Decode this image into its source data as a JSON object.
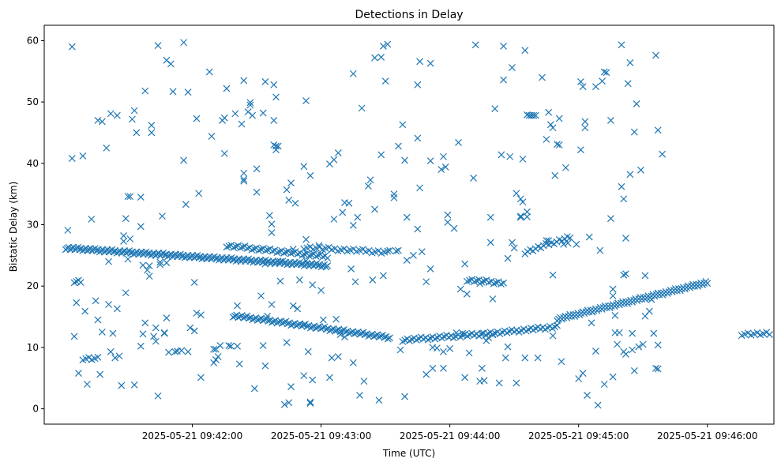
{
  "chart_data": {
    "type": "scatter",
    "title": "Detections in Delay",
    "xlabel": "Time (UTC)",
    "ylabel": "Bistatic Delay (km)",
    "marker": "x",
    "color": "#1f77b4",
    "grid": false,
    "legend": false,
    "xlim_seconds_past_0941": [
      -9,
      331
    ],
    "ylim": [
      -2.5,
      62.5
    ],
    "x_ticks": [
      {
        "t": 60,
        "label": "2025-05-21 09:42:00"
      },
      {
        "t": 120,
        "label": "2025-05-21 09:43:00"
      },
      {
        "t": 180,
        "label": "2025-05-21 09:44:00"
      },
      {
        "t": 240,
        "label": "2025-05-21 09:45:00"
      },
      {
        "t": 300,
        "label": "2025-05-21 09:46:00"
      }
    ],
    "y_ticks": [
      0,
      10,
      20,
      30,
      40,
      50,
      60
    ],
    "tracks": [
      {
        "t0": 1,
        "t1": 123,
        "y0": 26.2,
        "y1": 23.3,
        "n": 170
      },
      {
        "t0": 76,
        "t1": 123,
        "y0": 26.6,
        "y1": 24.8,
        "n": 45
      },
      {
        "t0": 112,
        "t1": 151,
        "y0": 26.3,
        "y1": 25.5,
        "n": 28
      },
      {
        "t0": 79,
        "t1": 152,
        "y0": 15.2,
        "y1": 11.6,
        "n": 90
      },
      {
        "t0": 158,
        "t1": 200,
        "y0": 11.2,
        "y1": 12.3,
        "n": 40
      },
      {
        "t0": 200,
        "t1": 230,
        "y0": 12.3,
        "y1": 13.4,
        "n": 28
      },
      {
        "t0": 230,
        "t1": 300,
        "y0": 14.6,
        "y1": 20.6,
        "n": 95
      },
      {
        "t0": 215,
        "t1": 236,
        "y0": 25.5,
        "y1": 28.0,
        "n": 18
      },
      {
        "t0": 188,
        "t1": 205,
        "y0": 21.0,
        "y1": 20.5,
        "n": 16
      },
      {
        "t0": 316,
        "t1": 329,
        "y0": 12.2,
        "y1": 12.2,
        "n": 10
      },
      {
        "t0": 5,
        "t1": 8,
        "y0": 20.8,
        "y1": 20.8,
        "n": 4
      },
      {
        "t0": 9,
        "t1": 16,
        "y0": 8.2,
        "y1": 8.2,
        "n": 6
      }
    ],
    "points": [
      [
        2,
        29.1
      ],
      [
        4,
        59.0
      ],
      [
        4,
        40.8
      ],
      [
        5,
        11.8
      ],
      [
        6,
        17.3
      ],
      [
        7,
        5.8
      ],
      [
        9,
        41.2
      ],
      [
        10,
        15.9
      ],
      [
        11,
        4.0
      ],
      [
        13,
        30.9
      ],
      [
        15,
        17.6
      ],
      [
        16,
        14.5
      ],
      [
        16,
        47.0
      ],
      [
        17,
        5.6
      ],
      [
        18,
        12.5
      ],
      [
        18,
        46.8
      ],
      [
        20,
        42.5
      ],
      [
        21,
        17.0
      ],
      [
        21,
        24.0
      ],
      [
        22,
        48.1
      ],
      [
        22,
        9.3
      ],
      [
        23,
        12.3
      ],
      [
        24,
        8.3
      ],
      [
        25,
        16.3
      ],
      [
        25,
        47.8
      ],
      [
        26,
        8.6
      ],
      [
        27,
        3.8
      ],
      [
        28,
        27.3
      ],
      [
        28,
        28.2
      ],
      [
        29,
        18.9
      ],
      [
        29,
        31.0
      ],
      [
        30,
        34.6
      ],
      [
        30,
        24.4
      ],
      [
        31,
        34.6
      ],
      [
        31,
        27.7
      ],
      [
        32,
        47.2
      ],
      [
        33,
        48.6
      ],
      [
        33,
        3.9
      ],
      [
        34,
        45.0
      ],
      [
        36,
        34.5
      ],
      [
        36,
        29.7
      ],
      [
        36,
        10.2
      ],
      [
        37,
        23.4
      ],
      [
        37,
        12.2
      ],
      [
        38,
        51.8
      ],
      [
        38,
        14.0
      ],
      [
        39,
        22.6
      ],
      [
        40,
        21.6
      ],
      [
        40,
        23.3
      ],
      [
        41,
        46.2
      ],
      [
        41,
        45.0
      ],
      [
        42,
        11.8
      ],
      [
        43,
        11.0
      ],
      [
        43,
        13.2
      ],
      [
        44,
        2.1
      ],
      [
        44,
        59.2
      ],
      [
        45,
        23.5
      ],
      [
        45,
        23.9
      ],
      [
        46,
        31.4
      ],
      [
        47,
        12.3
      ],
      [
        47,
        12.4
      ],
      [
        48,
        23.8
      ],
      [
        48,
        14.8
      ],
      [
        48,
        56.8
      ],
      [
        49,
        9.2
      ],
      [
        50,
        56.2
      ],
      [
        51,
        51.7
      ],
      [
        52,
        9.3
      ],
      [
        53,
        9.4
      ],
      [
        55,
        9.5
      ],
      [
        56,
        40.5
      ],
      [
        56,
        59.7
      ],
      [
        57,
        33.3
      ],
      [
        58,
        51.6
      ],
      [
        58,
        9.3
      ],
      [
        59,
        13.2
      ],
      [
        61,
        12.7
      ],
      [
        61,
        20.6
      ],
      [
        62,
        47.3
      ],
      [
        62,
        15.6
      ],
      [
        63,
        35.1
      ],
      [
        64,
        15.3
      ],
      [
        64,
        5.1
      ],
      [
        68,
        54.9
      ],
      [
        69,
        44.4
      ],
      [
        70,
        9.7
      ],
      [
        70,
        7.5
      ],
      [
        71,
        8.0
      ],
      [
        71,
        9.7
      ],
      [
        72,
        8.5
      ],
      [
        73,
        10.3
      ],
      [
        74,
        47.0
      ],
      [
        75,
        47.4
      ],
      [
        75,
        41.6
      ],
      [
        76,
        52.2
      ],
      [
        77,
        10.3
      ],
      [
        78,
        10.2
      ],
      [
        80,
        48.1
      ],
      [
        81,
        16.8
      ],
      [
        81,
        10.2
      ],
      [
        82,
        7.3
      ],
      [
        83,
        46.4
      ],
      [
        84,
        37.4
      ],
      [
        84,
        37.1
      ],
      [
        84,
        53.5
      ],
      [
        84,
        38.4
      ],
      [
        86,
        48.4
      ],
      [
        87,
        49.5
      ],
      [
        87,
        49.9
      ],
      [
        88,
        47.8
      ],
      [
        89,
        3.3
      ],
      [
        90,
        39.1
      ],
      [
        90,
        35.3
      ],
      [
        92,
        18.4
      ],
      [
        93,
        48.2
      ],
      [
        93,
        10.3
      ],
      [
        94,
        53.3
      ],
      [
        94,
        7.0
      ],
      [
        94,
        23.6
      ],
      [
        95,
        15.1
      ],
      [
        96,
        31.5
      ],
      [
        97,
        17.0
      ],
      [
        97,
        30.1
      ],
      [
        97,
        28.7
      ],
      [
        98,
        52.8
      ],
      [
        98,
        47.0
      ],
      [
        98,
        43.0
      ],
      [
        99,
        50.8
      ],
      [
        99,
        42.8
      ],
      [
        99,
        42.2
      ],
      [
        100,
        42.8
      ],
      [
        101,
        20.8
      ],
      [
        101,
        24.0
      ],
      [
        103,
        0.7
      ],
      [
        104,
        35.7
      ],
      [
        104,
        10.8
      ],
      [
        105,
        34.0
      ],
      [
        105,
        1.0
      ],
      [
        106,
        3.6
      ],
      [
        106,
        36.8
      ],
      [
        107,
        26.0
      ],
      [
        107,
        16.8
      ],
      [
        108,
        33.5
      ],
      [
        109,
        16.3
      ],
      [
        110,
        21.0
      ],
      [
        112,
        13.7
      ],
      [
        112,
        39.5
      ],
      [
        112,
        5.4
      ],
      [
        113,
        27.6
      ],
      [
        113,
        50.2
      ],
      [
        113,
        24.1
      ],
      [
        114,
        9.3
      ],
      [
        115,
        38.0
      ],
      [
        115,
        0.9
      ],
      [
        115,
        1.1
      ],
      [
        116,
        20.2
      ],
      [
        116,
        4.7
      ],
      [
        119,
        26.6
      ],
      [
        120,
        19.3
      ],
      [
        121,
        14.5
      ],
      [
        124,
        39.9
      ],
      [
        124,
        5.1
      ],
      [
        125,
        8.3
      ],
      [
        126,
        30.9
      ],
      [
        126,
        40.6
      ],
      [
        127,
        14.6
      ],
      [
        128,
        41.7
      ],
      [
        128,
        8.5
      ],
      [
        129,
        12.1
      ],
      [
        130,
        32.0
      ],
      [
        131,
        33.6
      ],
      [
        131,
        11.7
      ],
      [
        133,
        33.5
      ],
      [
        134,
        22.8
      ],
      [
        135,
        29.9
      ],
      [
        135,
        54.6
      ],
      [
        135,
        7.5
      ],
      [
        136,
        20.7
      ],
      [
        137,
        31.2
      ],
      [
        138,
        2.2
      ],
      [
        139,
        49.0
      ],
      [
        140,
        4.5
      ],
      [
        142,
        36.3
      ],
      [
        143,
        37.3
      ],
      [
        144,
        21.0
      ],
      [
        145,
        57.2
      ],
      [
        145,
        32.5
      ],
      [
        147,
        1.4
      ],
      [
        148,
        57.3
      ],
      [
        148,
        41.4
      ],
      [
        149,
        59.1
      ],
      [
        149,
        21.7
      ],
      [
        150,
        53.4
      ],
      [
        151,
        59.4
      ],
      [
        152,
        25.8
      ],
      [
        154,
        34.4
      ],
      [
        154,
        35.0
      ],
      [
        155,
        25.7
      ],
      [
        156,
        42.8
      ],
      [
        156,
        25.8
      ],
      [
        157,
        9.6
      ],
      [
        158,
        46.3
      ],
      [
        159,
        40.5
      ],
      [
        159,
        2.0
      ],
      [
        160,
        31.2
      ],
      [
        160,
        24.2
      ],
      [
        163,
        25.0
      ],
      [
        165,
        52.8
      ],
      [
        165,
        44.1
      ],
      [
        165,
        29.3
      ],
      [
        166,
        56.6
      ],
      [
        166,
        36.0
      ],
      [
        167,
        25.6
      ],
      [
        169,
        5.6
      ],
      [
        169,
        20.7
      ],
      [
        171,
        56.3
      ],
      [
        171,
        40.4
      ],
      [
        171,
        22.8
      ],
      [
        172,
        6.6
      ],
      [
        172,
        10.0
      ],
      [
        174,
        9.9
      ],
      [
        176,
        39.0
      ],
      [
        177,
        9.3
      ],
      [
        177,
        6.6
      ],
      [
        177,
        41.1
      ],
      [
        178,
        39.4
      ],
      [
        179,
        31.6
      ],
      [
        179,
        30.4
      ],
      [
        180,
        9.8
      ],
      [
        182,
        29.4
      ],
      [
        183,
        12.4
      ],
      [
        184,
        43.4
      ],
      [
        185,
        19.5
      ],
      [
        186,
        12.3
      ],
      [
        187,
        5.1
      ],
      [
        187,
        23.6
      ],
      [
        188,
        18.7
      ],
      [
        189,
        9.1
      ],
      [
        191,
        37.6
      ],
      [
        192,
        59.3
      ],
      [
        194,
        4.5
      ],
      [
        194,
        20.4
      ],
      [
        195,
        6.6
      ],
      [
        195,
        12.3
      ],
      [
        196,
        4.6
      ],
      [
        197,
        11.1
      ],
      [
        198,
        11.6
      ],
      [
        199,
        27.1
      ],
      [
        199,
        31.2
      ],
      [
        200,
        17.9
      ],
      [
        201,
        48.9
      ],
      [
        203,
        4.2
      ],
      [
        204,
        41.4
      ],
      [
        205,
        53.6
      ],
      [
        205,
        59.1
      ],
      [
        206,
        8.3
      ],
      [
        207,
        24.5
      ],
      [
        207,
        10.1
      ],
      [
        208,
        41.1
      ],
      [
        209,
        55.6
      ],
      [
        209,
        27.1
      ],
      [
        210,
        26.2
      ],
      [
        211,
        4.2
      ],
      [
        211,
        35.1
      ],
      [
        213,
        31.4
      ],
      [
        213,
        34.2
      ],
      [
        213,
        31.2
      ],
      [
        214,
        33.7
      ],
      [
        214,
        40.7
      ],
      [
        215,
        8.3
      ],
      [
        215,
        58.4
      ],
      [
        216,
        31.3
      ],
      [
        216,
        32.1
      ],
      [
        216,
        47.9
      ],
      [
        217,
        47.8
      ],
      [
        218,
        47.8
      ],
      [
        219,
        47.8
      ],
      [
        220,
        47.8
      ],
      [
        221,
        8.3
      ],
      [
        223,
        54.0
      ],
      [
        225,
        27.4
      ],
      [
        225,
        43.9
      ],
      [
        226,
        27.4
      ],
      [
        226,
        48.3
      ],
      [
        227,
        46.3
      ],
      [
        228,
        45.8
      ],
      [
        228,
        21.8
      ],
      [
        228,
        11.9
      ],
      [
        229,
        38.0
      ],
      [
        230,
        43.1
      ],
      [
        231,
        43.0
      ],
      [
        231,
        47.3
      ],
      [
        232,
        7.7
      ],
      [
        233,
        26.8
      ],
      [
        234,
        39.3
      ],
      [
        235,
        27.0
      ],
      [
        239,
        26.8
      ],
      [
        240,
        4.9
      ],
      [
        241,
        42.2
      ],
      [
        241,
        53.3
      ],
      [
        242,
        52.5
      ],
      [
        242,
        5.8
      ],
      [
        243,
        46.8
      ],
      [
        243,
        45.8
      ],
      [
        244,
        2.2
      ],
      [
        245,
        28.0
      ],
      [
        246,
        14.0
      ],
      [
        248,
        9.4
      ],
      [
        248,
        52.5
      ],
      [
        249,
        0.6
      ],
      [
        250,
        25.8
      ],
      [
        251,
        53.4
      ],
      [
        252,
        54.9
      ],
      [
        252,
        4.0
      ],
      [
        253,
        54.8
      ],
      [
        255,
        31.0
      ],
      [
        255,
        47.0
      ],
      [
        256,
        19.5
      ],
      [
        256,
        18.4
      ],
      [
        256,
        5.2
      ],
      [
        257,
        12.4
      ],
      [
        257,
        15.2
      ],
      [
        258,
        10.5
      ],
      [
        259,
        12.4
      ],
      [
        260,
        59.3
      ],
      [
        260,
        36.2
      ],
      [
        261,
        9.3
      ],
      [
        261,
        34.2
      ],
      [
        261,
        21.8
      ],
      [
        262,
        22.0
      ],
      [
        262,
        27.8
      ],
      [
        262,
        8.9
      ],
      [
        263,
        53.0
      ],
      [
        264,
        56.4
      ],
      [
        264,
        38.2
      ],
      [
        265,
        12.3
      ],
      [
        265,
        9.6
      ],
      [
        266,
        45.1
      ],
      [
        266,
        6.2
      ],
      [
        267,
        49.7
      ],
      [
        268,
        10.1
      ],
      [
        269,
        38.9
      ],
      [
        270,
        10.5
      ],
      [
        271,
        15.1
      ],
      [
        271,
        21.7
      ],
      [
        273,
        15.9
      ],
      [
        274,
        17.8
      ],
      [
        275,
        12.3
      ],
      [
        276,
        57.6
      ],
      [
        276,
        6.6
      ],
      [
        277,
        6.5
      ],
      [
        277,
        10.4
      ],
      [
        277,
        45.4
      ],
      [
        279,
        41.5
      ]
    ]
  }
}
